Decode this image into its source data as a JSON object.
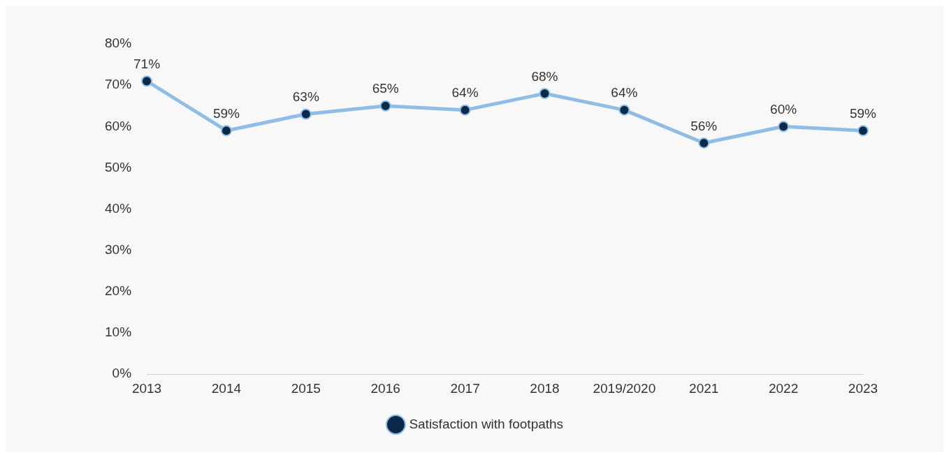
{
  "chart_data": {
    "type": "line",
    "categories": [
      "2013",
      "2014",
      "2015",
      "2016",
      "2017",
      "2018",
      "2019/2020",
      "2021",
      "2022",
      "2023"
    ],
    "series": [
      {
        "name": "Satisfaction with footpaths",
        "color": "#8fbde6",
        "values": [
          71,
          59,
          63,
          65,
          64,
          68,
          64,
          56,
          60,
          59
        ],
        "value_labels": [
          "71%",
          "59%",
          "63%",
          "65%",
          "64%",
          "68%",
          "64%",
          "56%",
          "60%",
          "59%"
        ]
      }
    ],
    "ylim": [
      0,
      80
    ],
    "yticks": [
      {
        "value": 0,
        "label": "0%"
      },
      {
        "value": 10,
        "label": "10%"
      },
      {
        "value": 20,
        "label": "20%"
      },
      {
        "value": 30,
        "label": "30%"
      },
      {
        "value": 40,
        "label": "40%"
      },
      {
        "value": 50,
        "label": "50%"
      },
      {
        "value": 60,
        "label": "60%"
      },
      {
        "value": 70,
        "label": "70%"
      },
      {
        "value": 80,
        "label": "80%"
      }
    ],
    "grid": false,
    "legend": "bottom",
    "marker": "circle",
    "line_style": "solid"
  }
}
